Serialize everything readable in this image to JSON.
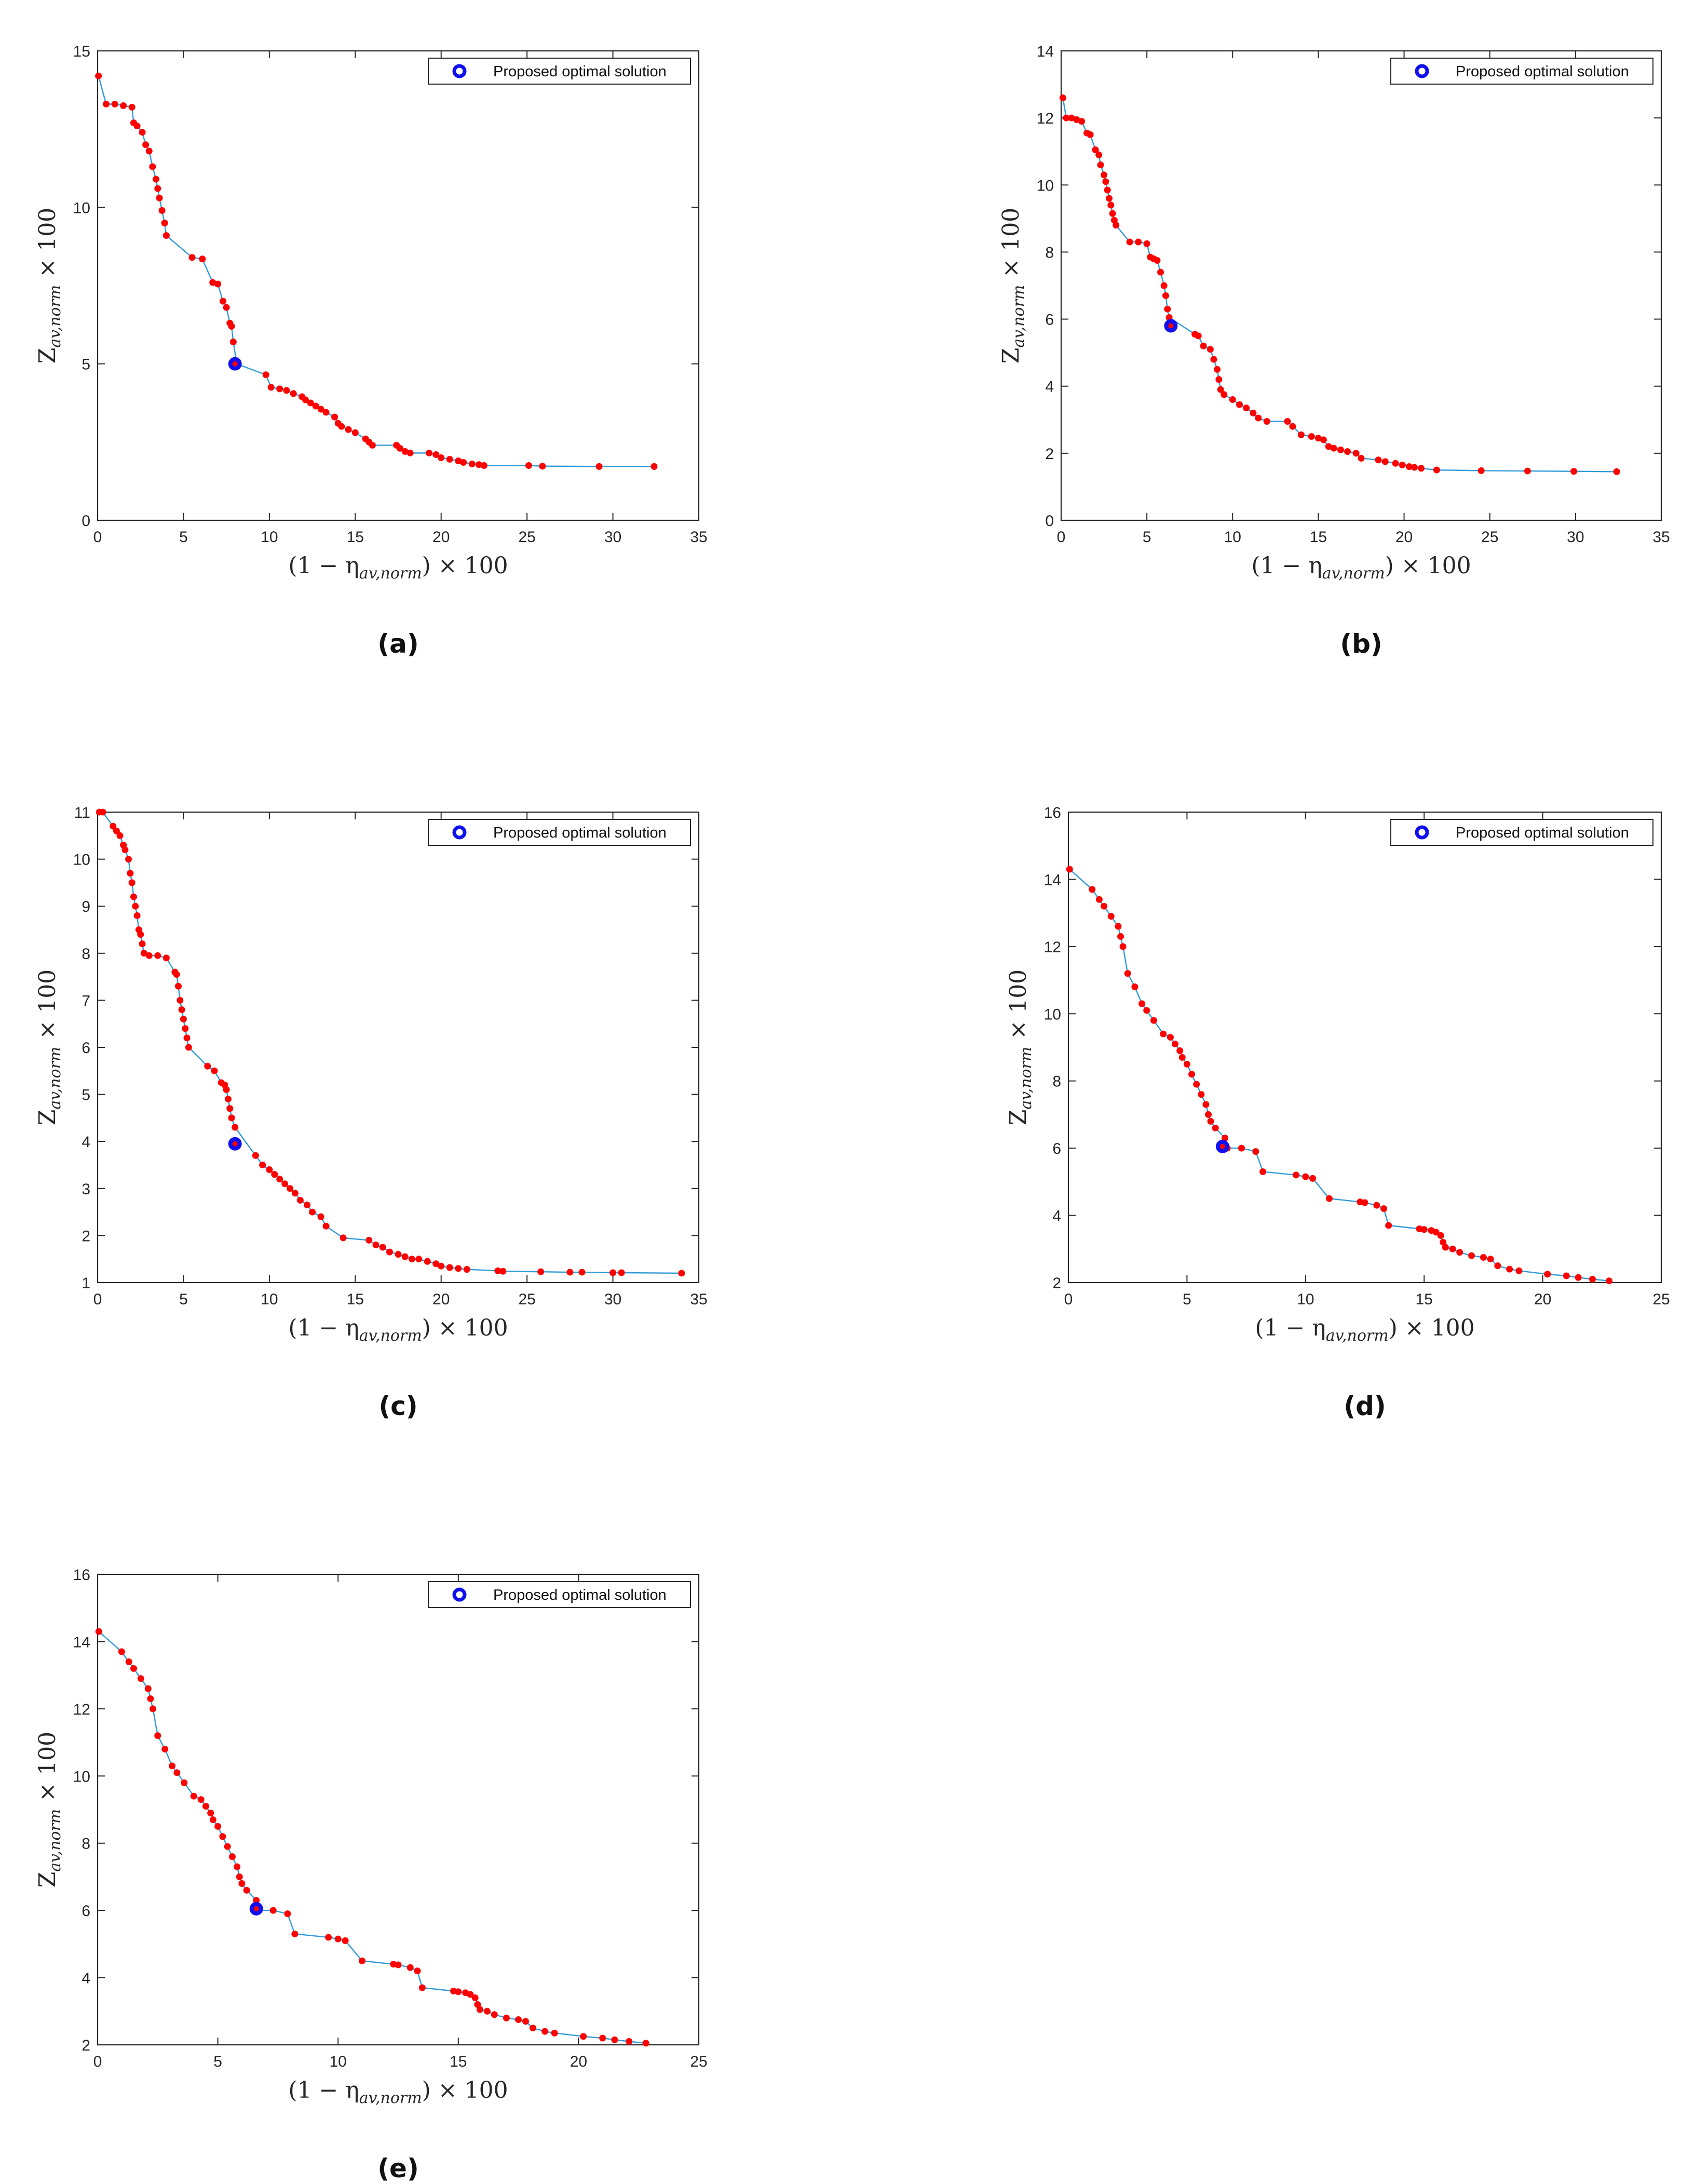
{
  "figure": {
    "xlabel": {
      "pre": "(1 − η",
      "sub": "av,norm",
      "post": ") × 100"
    },
    "ylabel": {
      "pre": "Z",
      "sub": "av,norm",
      "post": " × 100"
    },
    "legend_label": "Proposed optimal solution",
    "colors": {
      "line": "#2f9ad8",
      "point": "#ff0000",
      "optimal": "#1010ee",
      "axis": "#262626"
    }
  },
  "chart_data": [
    {
      "type": "line",
      "panel": "(a)",
      "legend": "Proposed optimal solution",
      "xlim": [
        0,
        35
      ],
      "ylim": [
        0,
        15
      ],
      "xticks": [
        0,
        5,
        10,
        15,
        20,
        25,
        30,
        35
      ],
      "yticks": [
        0,
        5,
        10,
        15
      ],
      "x": [
        0.05,
        0.5,
        1.0,
        1.5,
        2.0,
        2.1,
        2.3,
        2.6,
        2.8,
        3.0,
        3.2,
        3.4,
        3.5,
        3.6,
        3.75,
        3.9,
        4.0,
        5.5,
        6.1,
        6.7,
        7.0,
        7.3,
        7.5,
        7.7,
        7.8,
        7.9,
        8.1,
        9.8,
        10.1,
        10.6,
        11.0,
        11.4,
        11.9,
        12.1,
        12.4,
        12.7,
        13.0,
        13.3,
        13.8,
        14.0,
        14.2,
        14.6,
        15.0,
        15.6,
        15.8,
        16.0,
        17.4,
        17.6,
        17.9,
        18.2,
        19.3,
        19.7,
        20.0,
        20.5,
        21.0,
        21.3,
        21.8,
        22.2,
        22.5,
        25.1,
        25.9,
        29.2,
        32.4
      ],
      "y": [
        14.2,
        13.3,
        13.3,
        13.25,
        13.2,
        12.7,
        12.6,
        12.4,
        12.0,
        11.8,
        11.3,
        10.9,
        10.6,
        10.3,
        9.9,
        9.5,
        9.1,
        8.4,
        8.35,
        7.6,
        7.55,
        7.0,
        6.8,
        6.3,
        6.2,
        5.7,
        5.0,
        4.65,
        4.25,
        4.2,
        4.15,
        4.05,
        3.95,
        3.85,
        3.75,
        3.65,
        3.55,
        3.45,
        3.3,
        3.1,
        3.0,
        2.9,
        2.8,
        2.6,
        2.5,
        2.4,
        2.4,
        2.3,
        2.2,
        2.15,
        2.15,
        2.1,
        2.0,
        1.95,
        1.9,
        1.85,
        1.8,
        1.78,
        1.75,
        1.75,
        1.73,
        1.72,
        1.72
      ],
      "optimal": {
        "x": 8.0,
        "y": 5.0
      }
    },
    {
      "type": "line",
      "panel": "(b)",
      "legend": "Proposed optimal solution",
      "xlim": [
        0,
        35
      ],
      "ylim": [
        0,
        14
      ],
      "xticks": [
        0,
        5,
        10,
        15,
        20,
        25,
        30,
        35
      ],
      "yticks": [
        0,
        2,
        4,
        6,
        8,
        10,
        12,
        14
      ],
      "x": [
        0.1,
        0.3,
        0.6,
        0.9,
        1.2,
        1.5,
        1.7,
        2.0,
        2.2,
        2.3,
        2.5,
        2.6,
        2.7,
        2.8,
        2.9,
        3.0,
        3.1,
        3.2,
        4.0,
        4.5,
        5.0,
        5.2,
        5.4,
        5.6,
        5.8,
        6.0,
        6.1,
        6.2,
        6.3,
        7.8,
        8.0,
        8.3,
        8.7,
        8.9,
        9.1,
        9.2,
        9.3,
        9.5,
        10.0,
        10.4,
        10.8,
        11.2,
        11.5,
        12.0,
        13.2,
        13.5,
        14.0,
        14.6,
        15.0,
        15.3,
        15.6,
        15.9,
        16.3,
        16.7,
        17.2,
        17.5,
        18.5,
        18.9,
        19.5,
        19.9,
        20.3,
        20.6,
        21.0,
        21.9,
        24.5,
        27.2,
        29.9,
        32.4
      ],
      "y": [
        12.6,
        12.0,
        12.0,
        11.95,
        11.9,
        11.55,
        11.5,
        11.05,
        10.9,
        10.6,
        10.3,
        10.1,
        9.85,
        9.6,
        9.4,
        9.15,
        8.95,
        8.8,
        8.3,
        8.3,
        8.25,
        7.85,
        7.8,
        7.75,
        7.4,
        7.0,
        6.7,
        6.3,
        6.05,
        5.55,
        5.5,
        5.2,
        5.1,
        4.8,
        4.5,
        4.2,
        3.9,
        3.75,
        3.6,
        3.45,
        3.35,
        3.2,
        3.05,
        2.95,
        2.95,
        2.8,
        2.55,
        2.5,
        2.45,
        2.4,
        2.2,
        2.15,
        2.1,
        2.05,
        2.0,
        1.85,
        1.8,
        1.75,
        1.7,
        1.65,
        1.6,
        1.58,
        1.55,
        1.5,
        1.48,
        1.47,
        1.46,
        1.45
      ],
      "optimal": {
        "x": 6.4,
        "y": 5.8
      }
    },
    {
      "type": "line",
      "panel": "(c)",
      "legend": "Proposed optimal solution",
      "xlim": [
        0,
        35
      ],
      "ylim": [
        1,
        11
      ],
      "xticks": [
        0,
        5,
        10,
        15,
        20,
        25,
        30,
        35
      ],
      "yticks": [
        1,
        2,
        3,
        4,
        5,
        6,
        7,
        8,
        9,
        10,
        11
      ],
      "x": [
        0.1,
        0.3,
        0.9,
        1.1,
        1.3,
        1.5,
        1.6,
        1.8,
        1.9,
        2.0,
        2.1,
        2.2,
        2.3,
        2.4,
        2.5,
        2.6,
        2.7,
        3.0,
        3.5,
        4.0,
        4.5,
        4.6,
        4.7,
        4.8,
        4.9,
        5.0,
        5.1,
        5.2,
        5.3,
        6.4,
        6.8,
        7.2,
        7.4,
        7.5,
        7.6,
        7.7,
        7.8,
        8.0,
        9.2,
        9.6,
        10.0,
        10.3,
        10.6,
        10.9,
        11.2,
        11.5,
        11.8,
        12.2,
        12.5,
        13.0,
        13.3,
        14.3,
        15.8,
        16.2,
        16.6,
        17.0,
        17.5,
        17.9,
        18.3,
        18.7,
        19.2,
        19.7,
        20.0,
        20.5,
        21.0,
        21.5,
        23.3,
        23.6,
        25.8,
        27.5,
        28.2,
        30.0,
        30.5,
        34.0
      ],
      "y": [
        11.0,
        11.0,
        10.7,
        10.6,
        10.5,
        10.3,
        10.2,
        10.0,
        9.7,
        9.5,
        9.2,
        9.0,
        8.8,
        8.5,
        8.4,
        8.2,
        8.0,
        7.95,
        7.95,
        7.9,
        7.6,
        7.55,
        7.3,
        7.0,
        6.8,
        6.6,
        6.4,
        6.2,
        6.0,
        5.6,
        5.5,
        5.25,
        5.2,
        5.1,
        4.9,
        4.7,
        4.5,
        4.3,
        3.7,
        3.5,
        3.4,
        3.3,
        3.2,
        3.1,
        3.0,
        2.9,
        2.75,
        2.65,
        2.5,
        2.4,
        2.2,
        1.95,
        1.9,
        1.8,
        1.75,
        1.65,
        1.6,
        1.55,
        1.5,
        1.5,
        1.45,
        1.4,
        1.35,
        1.32,
        1.3,
        1.28,
        1.25,
        1.24,
        1.23,
        1.22,
        1.22,
        1.21,
        1.21,
        1.2
      ],
      "optimal": {
        "x": 8.0,
        "y": 3.95
      }
    },
    {
      "type": "line",
      "panel": "(d)",
      "legend": "Proposed optimal solution",
      "xlim": [
        0,
        25
      ],
      "ylim": [
        2,
        16
      ],
      "xticks": [
        0,
        5,
        10,
        15,
        20,
        25
      ],
      "yticks": [
        2,
        4,
        6,
        8,
        10,
        12,
        14,
        16
      ],
      "x": [
        0.05,
        1.0,
        1.3,
        1.5,
        1.8,
        2.1,
        2.2,
        2.3,
        2.5,
        2.8,
        3.1,
        3.3,
        3.6,
        4.0,
        4.3,
        4.5,
        4.7,
        4.8,
        5.0,
        5.2,
        5.4,
        5.6,
        5.8,
        5.9,
        6.0,
        6.2,
        6.6,
        6.7,
        7.3,
        7.9,
        8.2,
        9.6,
        10.0,
        10.3,
        11.0,
        12.3,
        12.5,
        13.0,
        13.3,
        13.5,
        14.8,
        15.0,
        15.3,
        15.5,
        15.7,
        15.8,
        15.9,
        16.2,
        16.5,
        17.0,
        17.5,
        17.8,
        18.1,
        18.6,
        19.0,
        20.2,
        21.0,
        21.5,
        22.1,
        22.8
      ],
      "y": [
        14.3,
        13.7,
        13.4,
        13.2,
        12.9,
        12.6,
        12.3,
        12.0,
        11.2,
        10.8,
        10.3,
        10.1,
        9.8,
        9.4,
        9.3,
        9.1,
        8.9,
        8.7,
        8.5,
        8.2,
        7.9,
        7.6,
        7.3,
        7.0,
        6.8,
        6.6,
        6.3,
        6.0,
        6.0,
        5.9,
        5.3,
        5.2,
        5.15,
        5.1,
        4.5,
        4.4,
        4.38,
        4.3,
        4.2,
        3.7,
        3.6,
        3.58,
        3.55,
        3.5,
        3.4,
        3.2,
        3.05,
        3.0,
        2.9,
        2.8,
        2.75,
        2.7,
        2.5,
        2.4,
        2.35,
        2.25,
        2.2,
        2.15,
        2.1,
        2.05
      ],
      "optimal": {
        "x": 6.5,
        "y": 6.05
      }
    },
    {
      "type": "line",
      "panel": "(e)",
      "legend": "Proposed optimal solution",
      "xlim": [
        0,
        25
      ],
      "ylim": [
        2,
        16
      ],
      "xticks": [
        0,
        5,
        10,
        15,
        20,
        25
      ],
      "yticks": [
        2,
        4,
        6,
        8,
        10,
        12,
        14,
        16
      ],
      "x": [
        0.05,
        1.0,
        1.3,
        1.5,
        1.8,
        2.1,
        2.2,
        2.3,
        2.5,
        2.8,
        3.1,
        3.3,
        3.6,
        4.0,
        4.3,
        4.5,
        4.7,
        4.8,
        5.0,
        5.2,
        5.4,
        5.6,
        5.8,
        5.9,
        6.0,
        6.2,
        6.6,
        6.7,
        7.3,
        7.9,
        8.2,
        9.6,
        10.0,
        10.3,
        11.0,
        12.3,
        12.5,
        13.0,
        13.3,
        13.5,
        14.8,
        15.0,
        15.3,
        15.5,
        15.7,
        15.8,
        15.9,
        16.2,
        16.5,
        17.0,
        17.5,
        17.8,
        18.1,
        18.6,
        19.0,
        20.2,
        21.0,
        21.5,
        22.1,
        22.8
      ],
      "y": [
        14.3,
        13.7,
        13.4,
        13.2,
        12.9,
        12.6,
        12.3,
        12.0,
        11.2,
        10.8,
        10.3,
        10.1,
        9.8,
        9.4,
        9.3,
        9.1,
        8.9,
        8.7,
        8.5,
        8.2,
        7.9,
        7.6,
        7.3,
        7.0,
        6.8,
        6.6,
        6.3,
        6.0,
        6.0,
        5.9,
        5.3,
        5.2,
        5.15,
        5.1,
        4.5,
        4.4,
        4.38,
        4.3,
        4.2,
        3.7,
        3.6,
        3.58,
        3.55,
        3.5,
        3.4,
        3.2,
        3.05,
        3.0,
        2.9,
        2.8,
        2.75,
        2.7,
        2.5,
        2.4,
        2.35,
        2.25,
        2.2,
        2.15,
        2.1,
        2.05
      ],
      "optimal": {
        "x": 6.6,
        "y": 6.05
      }
    }
  ]
}
